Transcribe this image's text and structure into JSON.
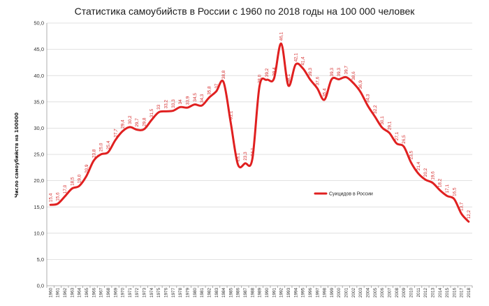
{
  "chart_data": {
    "type": "line",
    "title": "Статистика самоубийств в России с 1960 по 2018 годы на 100 000 человек",
    "xlabel": "",
    "ylabel": "Число самоубийств на 100000",
    "ylim": [
      0,
      50
    ],
    "yticks": [
      "0,0",
      "5,0",
      "10,0",
      "15,0",
      "20,0",
      "25,0",
      "30,0",
      "35,0",
      "40,0",
      "45,0",
      "50,0"
    ],
    "grid": true,
    "legend_position": "center-right",
    "categories": [
      "1960",
      "1961",
      "1962",
      "1963",
      "1964",
      "1965",
      "1966",
      "1967",
      "1968",
      "1969",
      "1970",
      "1971",
      "1972",
      "1973",
      "1974",
      "1975",
      "1976",
      "1977",
      "1978",
      "1979",
      "1980",
      "1981",
      "1982",
      "1983",
      "1984",
      "1985",
      "1986",
      "1987",
      "1988",
      "1989",
      "1990",
      "1991",
      "1992",
      "1993",
      "1994",
      "1995",
      "1996",
      "1997",
      "1998",
      "1999",
      "2000",
      "2001",
      "2002",
      "2003",
      "2004",
      "2005",
      "2006",
      "2007",
      "2008",
      "2009",
      "2010",
      "2011",
      "2012",
      "2013",
      "2014",
      "2015",
      "2016",
      "2017",
      "2018"
    ],
    "series": [
      {
        "name": "Суицидов в России",
        "color": "#e02020",
        "values": [
          15.4,
          15.6,
          17.0,
          18.5,
          19.0,
          20.9,
          23.8,
          25.0,
          25.4,
          27.7,
          29.4,
          30.2,
          29.7,
          29.8,
          31.5,
          33.0,
          33.2,
          33.3,
          34.0,
          33.9,
          34.5,
          34.3,
          35.8,
          37.0,
          38.8,
          31.1,
          23.1,
          23.3,
          24.1,
          38.0,
          39.2,
          39.4,
          46.1,
          38.1,
          42.1,
          41.4,
          39.3,
          37.6,
          35.4,
          39.3,
          39.3,
          39.7,
          38.6,
          36.9,
          34.3,
          32.2,
          30.1,
          29.1,
          27.1,
          26.5,
          23.5,
          21.4,
          20.2,
          19.6,
          18.2,
          17.1,
          16.5,
          13.7,
          12.2
        ],
        "labels": [
          "15,4",
          "15,6",
          "17,0",
          "18,5",
          "19,0",
          "20,9",
          "23,8",
          "25,0",
          "25,4",
          "27,7",
          "29,4",
          "30,2",
          "29,7",
          "29,8",
          "31,5",
          "33",
          "33,2",
          "33,3",
          "34",
          "33,9",
          "34,5",
          "34,3",
          "35,8",
          "37",
          "38,8",
          "31,1",
          "23,1",
          "23,3",
          "24,1",
          "38,0",
          "39,2",
          "39,4",
          "46,1",
          "38,1",
          "42,1",
          "41,4",
          "39,3",
          "37,6",
          "35,4",
          "39,3",
          "39,3",
          "39,7",
          "38,6",
          "36,9",
          "34,3",
          "32,2",
          "30,1",
          "29,1",
          "27,1",
          "26,5",
          "23,5",
          "21,4",
          "20,2",
          "19,6",
          "18,2",
          "17,1",
          "16,5",
          "13,7",
          "12,2"
        ]
      }
    ]
  }
}
